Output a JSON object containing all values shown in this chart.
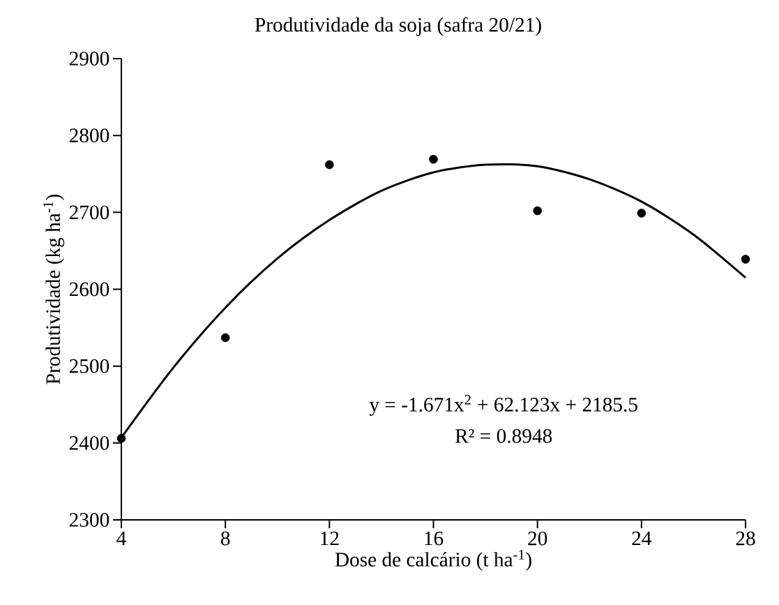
{
  "chart_data": {
    "type": "scatter",
    "title": "Produtividade da soja (safra 20/21)",
    "xlabel": "Dose de calcário (t ha$^{-1}$)",
    "ylabel": "Produtividade (kg ha$^{-1}$)",
    "xlim": [
      4,
      28
    ],
    "ylim": [
      2300,
      2900
    ],
    "xticks": [
      4,
      8,
      12,
      16,
      20,
      24,
      28
    ],
    "yticks": [
      2300,
      2400,
      2500,
      2600,
      2700,
      2800,
      2900
    ],
    "series": [
      {
        "color": "#000000",
        "marker": "circle",
        "x": [
          4,
          8,
          12,
          16,
          20,
          24,
          28
        ],
        "values": [
          2406,
          2537,
          2762,
          2769,
          2702,
          2699,
          2639
        ]
      },
      {
        "type": "line",
        "color": "#000000",
        "marker": "none",
        "line_style": "solid",
        "x": [
          4,
          6,
          8,
          10,
          12,
          14,
          16,
          18,
          20,
          22,
          24,
          26,
          28
        ],
        "values": [
          2407,
          2498,
          2576,
          2640,
          2690,
          2728,
          2752,
          2762,
          2760,
          2743,
          2714,
          2671,
          2615
        ]
      }
    ],
    "annotations": [
      "y = -1.671x$^{2}$ + 62.123x + 2185.5",
      "R² = 0.8948"
    ]
  }
}
